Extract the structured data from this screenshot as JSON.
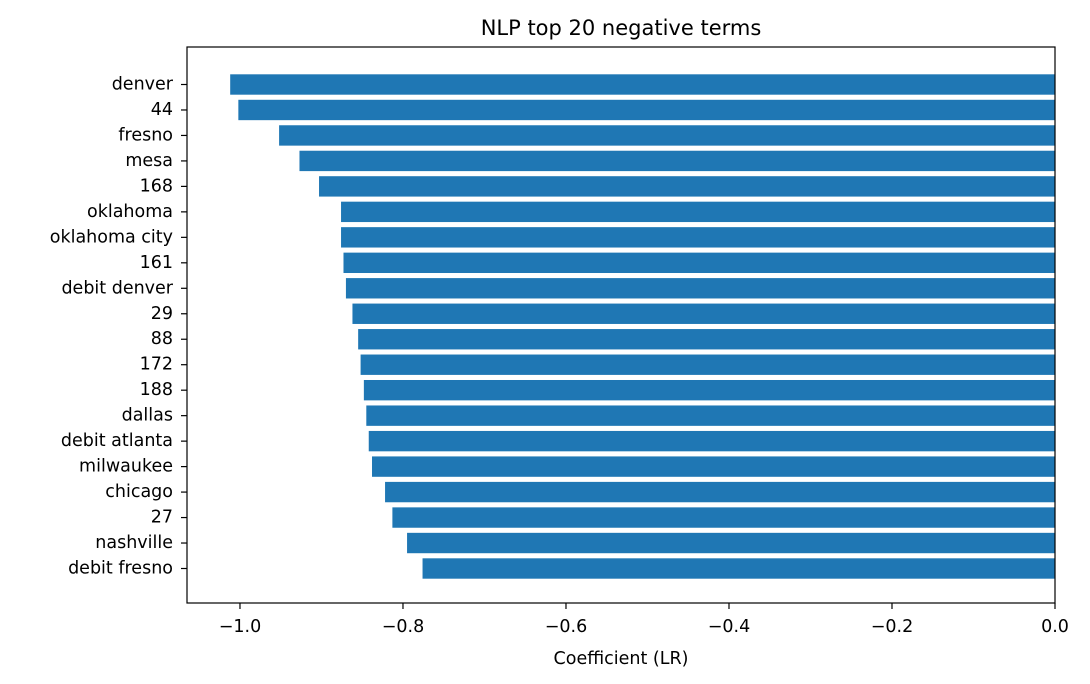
{
  "chart_data": {
    "type": "bar",
    "orientation": "horizontal",
    "title": "NLP top 20 negative terms",
    "xlabel": "Coefficient (LR)",
    "ylabel": "",
    "xlim": [
      -1.065,
      0.0
    ],
    "xticks": [
      -1.0,
      -0.8,
      -0.6,
      -0.4,
      -0.2,
      0.0
    ],
    "xtick_labels": [
      "−1.0",
      "−0.8",
      "−0.6",
      "−0.4",
      "−0.2",
      "0.0"
    ],
    "grid": false,
    "bar_color": "#1f77b4",
    "categories": [
      "denver",
      "44",
      "fresno",
      "mesa",
      "168",
      "oklahoma",
      "oklahoma city",
      "161",
      "debit denver",
      "29",
      "88",
      "172",
      "188",
      "dallas",
      "debit atlanta",
      "milwaukee",
      "chicago",
      "27",
      "nashville",
      "debit fresno"
    ],
    "values": [
      -1.012,
      -1.002,
      -0.952,
      -0.927,
      -0.903,
      -0.876,
      -0.876,
      -0.873,
      -0.87,
      -0.862,
      -0.855,
      -0.852,
      -0.848,
      -0.845,
      -0.842,
      -0.838,
      -0.822,
      -0.813,
      -0.795,
      -0.776
    ]
  }
}
